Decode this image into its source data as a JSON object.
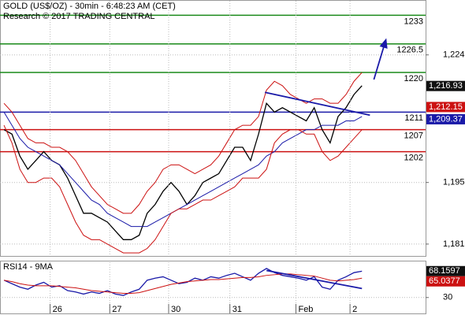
{
  "chart_data": [
    {
      "type": "line",
      "title": "GOLD (US$/OZ) - 30min - 6:48:23 AM (CET)",
      "subtitle": "Research © 2017 TRADING CENTRAL",
      "xlim": [
        -0.5,
        53
      ],
      "ylim": [
        1178.3,
        1236.3
      ],
      "yticks": [
        {
          "value": 1224,
          "label": "1,224"
        },
        {
          "value": 1195,
          "label": "1,195"
        },
        {
          "value": 1181,
          "label": "1,181"
        }
      ],
      "series": [
        {
          "name": "Price",
          "color": "#000000",
          "values": [
            1207,
            1206,
            1201,
            1198,
            1200,
            1202,
            1200,
            1199,
            1196,
            1192,
            1188,
            1188,
            1187,
            1186,
            1184,
            1182,
            1182,
            1183,
            1188,
            1190,
            1193,
            1195,
            1193,
            1190,
            1192,
            1195,
            1196,
            1197,
            1200,
            1203,
            1203,
            1200,
            1206,
            1213,
            1211,
            1212,
            1211,
            1210,
            1209,
            1212,
            1207,
            1204,
            1210,
            1212,
            1215,
            1217
          ]
        },
        {
          "name": "MA",
          "color": "#1a1aa8",
          "values": [
            1211,
            1208,
            1205,
            1203,
            1202,
            1201,
            1200,
            1199,
            1197,
            1195,
            1193,
            1191,
            1190,
            1188,
            1187,
            1186,
            1185,
            1185,
            1185,
            1186,
            1187,
            1188,
            1189,
            1190,
            1191,
            1192,
            1193,
            1194,
            1195,
            1196,
            1197,
            1198,
            1199,
            1201,
            1202,
            1204,
            1205,
            1206,
            1207,
            1207,
            1208,
            1208,
            1208,
            1209,
            1209,
            1210
          ]
        },
        {
          "name": "Upper band",
          "color": "#cc1111",
          "values": [
            1213,
            1211,
            1208,
            1205,
            1204,
            1204,
            1203,
            1203,
            1202,
            1200,
            1197,
            1194,
            1192,
            1190,
            1189,
            1188,
            1188,
            1190,
            1193,
            1195,
            1198,
            1199,
            1199,
            1198,
            1197,
            1198,
            1199,
            1201,
            1204,
            1207,
            1208,
            1208,
            1210,
            1216,
            1218,
            1217,
            1215,
            1214,
            1213,
            1214,
            1214,
            1213,
            1213,
            1215,
            1218,
            1220
          ]
        },
        {
          "name": "Lower band",
          "color": "#cc1111",
          "values": [
            1208,
            1204,
            1198,
            1195,
            1195,
            1196,
            1196,
            1194,
            1190,
            1186,
            1183,
            1182,
            1182,
            1181,
            1180,
            1179,
            1179,
            1179,
            1180,
            1182,
            1185,
            1188,
            1189,
            1189,
            1190,
            1191,
            1191,
            1192,
            1193,
            1194,
            1196,
            1196,
            1196,
            1198,
            1204,
            1206,
            1207,
            1207,
            1206,
            1206,
            1202,
            1200,
            1201,
            1203,
            1205,
            1207
          ]
        }
      ],
      "levels": [
        {
          "value": 1233,
          "color": "#1a8a1a"
        },
        {
          "value": 1226.5,
          "color": "#1a8a1a"
        },
        {
          "value": 1220,
          "color": "#1a8a1a"
        },
        {
          "value": 1211,
          "color": "#1a1aa8"
        },
        {
          "value": 1207,
          "color": "#cc1111"
        },
        {
          "value": 1202,
          "color": "#cc1111"
        }
      ],
      "price_tags": [
        {
          "value": 1216.93,
          "label": "1,216.93",
          "color": "#111111"
        },
        {
          "value": 1212.15,
          "label": "1,212.15",
          "color": "#cc1111"
        },
        {
          "value": 1209.37,
          "label": "1,209.37",
          "color": "#1a1aa8"
        }
      ],
      "trend_line": {
        "x": [
          32.8,
          46
        ],
        "y": [
          1215.5,
          1210.3
        ],
        "color": "#1a1aa8"
      },
      "arrow": {
        "x": [
          46.5,
          48
        ],
        "y": [
          1218.4,
          1227.4
        ],
        "color": "#1a1aa8"
      }
    },
    {
      "type": "line",
      "title": "RSI14 - 9MA",
      "xlim": [
        -0.5,
        53
      ],
      "ylim": [
        7,
        81
      ],
      "yticks": [
        30
      ],
      "xticks": [
        {
          "value": 5.8,
          "label": "26"
        },
        {
          "value": 13.3,
          "label": "27"
        },
        {
          "value": 20.7,
          "label": "30"
        },
        {
          "value": 28.4,
          "label": "31"
        },
        {
          "value": 36.7,
          "label": "Feb"
        },
        {
          "value": 43.5,
          "label": "2"
        }
      ],
      "series": [
        {
          "name": "RSI14",
          "color": "#1a1aa8",
          "values": [
            55,
            50,
            45,
            42,
            48,
            52,
            45,
            47,
            40,
            38,
            35,
            38,
            36,
            40,
            35,
            33,
            38,
            42,
            55,
            58,
            60,
            55,
            50,
            52,
            58,
            55,
            60,
            58,
            62,
            65,
            60,
            55,
            65,
            72,
            66,
            62,
            60,
            58,
            55,
            60,
            45,
            42,
            55,
            60,
            66,
            68
          ]
        },
        {
          "name": "9MA",
          "color": "#cc1111",
          "values": [
            55,
            53,
            50,
            48,
            47,
            47,
            47,
            46,
            45,
            44,
            42,
            40,
            39,
            38,
            37,
            36,
            36,
            37,
            40,
            43,
            46,
            49,
            51,
            53,
            54,
            55,
            56,
            56,
            57,
            58,
            59,
            59,
            60,
            62,
            63,
            64,
            64,
            63,
            62,
            61,
            58,
            55,
            54,
            55,
            56,
            58
          ]
        }
      ],
      "price_tags": [
        {
          "value": 68.1597,
          "label": "68.1597",
          "color": "#111111"
        },
        {
          "value": 65.0377,
          "label": "65.0377",
          "color": "#cc1111"
        }
      ],
      "trend_line": {
        "x": [
          33,
          45
        ],
        "y": [
          69,
          43
        ],
        "color": "#1a1aa8"
      }
    }
  ]
}
